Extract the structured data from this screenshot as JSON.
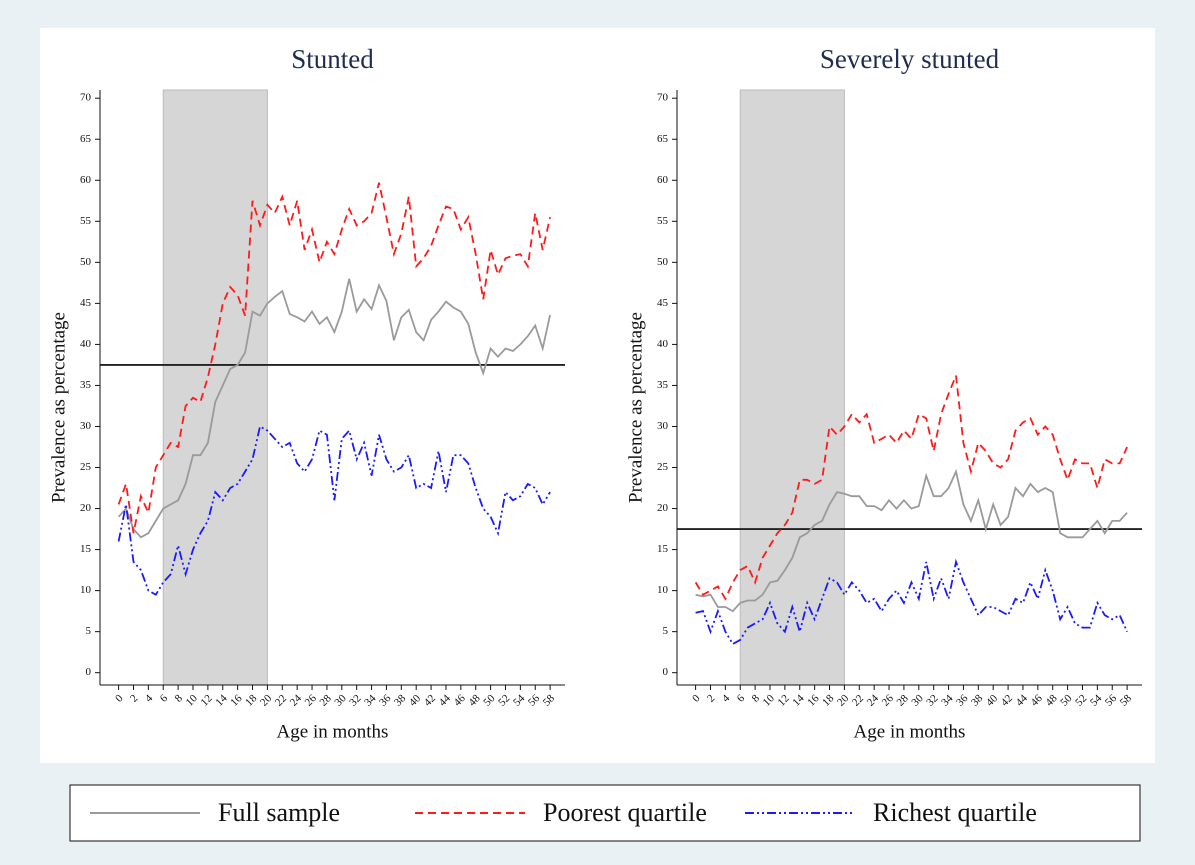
{
  "chart_data": [
    {
      "type": "line",
      "title": "Stunted",
      "x_label": "Age in months",
      "y_label": "Prevalence as percentage",
      "x": [
        0,
        1,
        2,
        3,
        4,
        5,
        6,
        7,
        8,
        9,
        10,
        11,
        12,
        13,
        14,
        15,
        16,
        17,
        18,
        19,
        20,
        21,
        22,
        23,
        24,
        25,
        26,
        27,
        28,
        29,
        30,
        31,
        32,
        33,
        34,
        35,
        36,
        37,
        38,
        39,
        40,
        41,
        42,
        43,
        44,
        45,
        46,
        47,
        48,
        49,
        50,
        51,
        52,
        53,
        54,
        55,
        56,
        57,
        58
      ],
      "xlim": [
        -2.5,
        60
      ],
      "xticks": [
        0,
        2,
        4,
        6,
        8,
        10,
        12,
        14,
        16,
        18,
        20,
        22,
        24,
        26,
        28,
        30,
        32,
        34,
        36,
        38,
        40,
        42,
        44,
        46,
        48,
        50,
        52,
        54,
        56,
        58
      ],
      "ylim": [
        -1.5,
        71
      ],
      "yticks": [
        0,
        5,
        10,
        15,
        20,
        25,
        30,
        35,
        40,
        45,
        50,
        55,
        60,
        65,
        70
      ],
      "reference_line": 37.5,
      "shaded_x": [
        6,
        20
      ],
      "series": [
        {
          "name": "Full sample",
          "color": "#9a9a9a",
          "dash": "none",
          "values": [
            19,
            20,
            17.5,
            16.5,
            17,
            18.5,
            20,
            20.5,
            21,
            23,
            26.5,
            26.5,
            28,
            33,
            35,
            37,
            37.5,
            39,
            44,
            43.5,
            45,
            45.8,
            46.5,
            43.7,
            43.3,
            42.8,
            44,
            42.5,
            43.3,
            41.5,
            44,
            48,
            44,
            45.5,
            44.3,
            47.2,
            45.3,
            40.5,
            43.3,
            44.2,
            41.5,
            40.5,
            43,
            44,
            45.2,
            44.5,
            44,
            42.5,
            39,
            36.5,
            39.5,
            38.5,
            39.5,
            39.2,
            40,
            41,
            42.3,
            39.5,
            43.6
          ]
        },
        {
          "name": "Poorest quartile",
          "color": "#ff1a1a",
          "dash": "8,5",
          "values": [
            20.5,
            23,
            17,
            21.5,
            19.5,
            25,
            26.5,
            28,
            27.5,
            32.5,
            33.5,
            33,
            36,
            40,
            45,
            47,
            46,
            43.5,
            57.5,
            54.5,
            57,
            56,
            58,
            54.5,
            57.5,
            51.5,
            54,
            50,
            52.5,
            51,
            54,
            56.5,
            54.5,
            55,
            56,
            59.7,
            55.5,
            51,
            53.5,
            58,
            49.5,
            50.5,
            52,
            54.5,
            56.8,
            56.5,
            54,
            55.5,
            51,
            45.5,
            51.5,
            48.5,
            50.5,
            50.8,
            51,
            49.5,
            56,
            51.5,
            55.5
          ]
        },
        {
          "name": "Richest quartile",
          "color": "#1a1aff",
          "dash": "9,3,2,3,2,3",
          "values": [
            16,
            20.5,
            13.5,
            12.5,
            10,
            9.5,
            11,
            12,
            15.5,
            12,
            15,
            17,
            18.5,
            22,
            21,
            22.5,
            23,
            24.5,
            26,
            30,
            29.5,
            28.5,
            27.5,
            28,
            25.5,
            24.5,
            26,
            29.5,
            29,
            21,
            28.5,
            29.5,
            26,
            28,
            24,
            29,
            26,
            24.5,
            25,
            26.5,
            22.5,
            23,
            22.5,
            27,
            22,
            26.5,
            26.5,
            25.5,
            22.5,
            20,
            19,
            17,
            22,
            21,
            21.5,
            23,
            22.5,
            20.5,
            22
          ]
        }
      ]
    },
    {
      "type": "line",
      "title": "Severely stunted",
      "x_label": "Age in months",
      "y_label": "Prevalence as percentage",
      "x": [
        0,
        1,
        2,
        3,
        4,
        5,
        6,
        7,
        8,
        9,
        10,
        11,
        12,
        13,
        14,
        15,
        16,
        17,
        18,
        19,
        20,
        21,
        22,
        23,
        24,
        25,
        26,
        27,
        28,
        29,
        30,
        31,
        32,
        33,
        34,
        35,
        36,
        37,
        38,
        39,
        40,
        41,
        42,
        43,
        44,
        45,
        46,
        47,
        48,
        49,
        50,
        51,
        52,
        53,
        54,
        55,
        56,
        57,
        58
      ],
      "xlim": [
        -2.5,
        60
      ],
      "xticks": [
        0,
        2,
        4,
        6,
        8,
        10,
        12,
        14,
        16,
        18,
        20,
        22,
        24,
        26,
        28,
        30,
        32,
        34,
        36,
        38,
        40,
        42,
        44,
        46,
        48,
        50,
        52,
        54,
        56,
        58
      ],
      "ylim": [
        -1.5,
        71
      ],
      "yticks": [
        0,
        5,
        10,
        15,
        20,
        25,
        30,
        35,
        40,
        45,
        50,
        55,
        60,
        65,
        70
      ],
      "reference_line": 17.5,
      "shaded_x": [
        6,
        20
      ],
      "series": [
        {
          "name": "Full sample",
          "color": "#9a9a9a",
          "dash": "none",
          "values": [
            9.5,
            9.3,
            9.5,
            8,
            8,
            7.5,
            8.5,
            8.8,
            8.8,
            9.5,
            11,
            11.2,
            12.5,
            14,
            16.5,
            17,
            18,
            18.5,
            20.5,
            22,
            21.8,
            21.5,
            21.5,
            20.3,
            20.3,
            19.8,
            21,
            20,
            21,
            20,
            20.3,
            24,
            21.5,
            21.5,
            22.5,
            24.5,
            20.5,
            18.5,
            21,
            17.5,
            20.5,
            18,
            19,
            22.5,
            21.5,
            23,
            22,
            22.5,
            22,
            17,
            16.5,
            16.5,
            16.5,
            17.5,
            18.5,
            17,
            18.5,
            18.5,
            19.5
          ]
        },
        {
          "name": "Poorest quartile",
          "color": "#ff1a1a",
          "dash": "8,5",
          "values": [
            11,
            9.5,
            10,
            10.5,
            9,
            11,
            12.5,
            13,
            11,
            14,
            15.5,
            17,
            18,
            19.5,
            23.5,
            23.5,
            23,
            23.5,
            30,
            29,
            30,
            31.5,
            30.5,
            31.5,
            28,
            28.5,
            29,
            28,
            29.5,
            28.5,
            31.5,
            31,
            27,
            31.5,
            34,
            36.2,
            28,
            24.5,
            28,
            27,
            25.5,
            25,
            26,
            29.5,
            30.5,
            31,
            29,
            30,
            29,
            26,
            23.5,
            26,
            25.5,
            25.5,
            22.5,
            26,
            25.5,
            25.5,
            27.5
          ]
        },
        {
          "name": "Richest quartile",
          "color": "#1a1aff",
          "dash": "9,3,2,3,2,3",
          "values": [
            7.3,
            7.5,
            5,
            7.5,
            5,
            3.5,
            4,
            5.5,
            6,
            6.5,
            8.5,
            6,
            5,
            8,
            5,
            8.5,
            6.5,
            9,
            11.5,
            11,
            9.5,
            11,
            10,
            8.5,
            9,
            7.5,
            9,
            10,
            8.5,
            11,
            9,
            13.5,
            9,
            11.5,
            9,
            13.5,
            11,
            9,
            7,
            8,
            8,
            7.5,
            7,
            9,
            8.5,
            11,
            9,
            12.5,
            10,
            6.5,
            8,
            6,
            5.5,
            5.5,
            8.5,
            7,
            6.5,
            7,
            5
          ]
        }
      ]
    }
  ]
}
